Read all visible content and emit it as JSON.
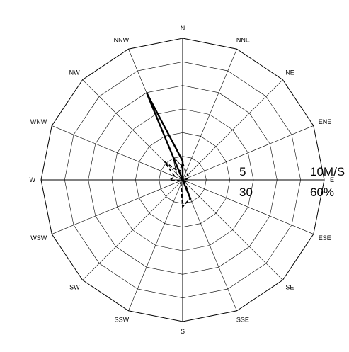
{
  "chart_data": {
    "type": "radar",
    "title": "",
    "directions": [
      "N",
      "NNE",
      "NE",
      "ENE",
      "E",
      "ESE",
      "SE",
      "SSE",
      "S",
      "SSW",
      "SW",
      "WSW",
      "W",
      "WNW",
      "NW",
      "NNW"
    ],
    "rings": 6,
    "scale_labels": [
      {
        "text": "5",
        "ring": 3
      },
      {
        "text": "10M/S",
        "ring": 6
      },
      {
        "text": "30",
        "ring": 3
      },
      {
        "text": "60%",
        "ring": 6
      }
    ],
    "axes": [
      {
        "name": "wind_speed",
        "unit": "M/S",
        "max": 10
      },
      {
        "name": "frequency",
        "unit": "%",
        "max": 60
      }
    ],
    "series": [
      {
        "style": "thick-solid",
        "axis": "frequency",
        "values": [
          8,
          0,
          0,
          0,
          0,
          0,
          0,
          9,
          0,
          0,
          0,
          0,
          0,
          0,
          0,
          40
        ]
      },
      {
        "style": "thin-solid",
        "axis": "wind_speed",
        "values": [
          0.9,
          0,
          0,
          0,
          0,
          0,
          0,
          0.2,
          0,
          0,
          0,
          0,
          0,
          0,
          0.6,
          1.8
        ]
      },
      {
        "style": "dashed",
        "axis": "wind_speed",
        "values": [
          1.2,
          0.6,
          0.5,
          0.5,
          0.2,
          0.3,
          0.2,
          1.4,
          1.9,
          0.3,
          0.3,
          0.2,
          0.9,
          0.6,
          1.8,
          0.6
        ]
      }
    ]
  }
}
